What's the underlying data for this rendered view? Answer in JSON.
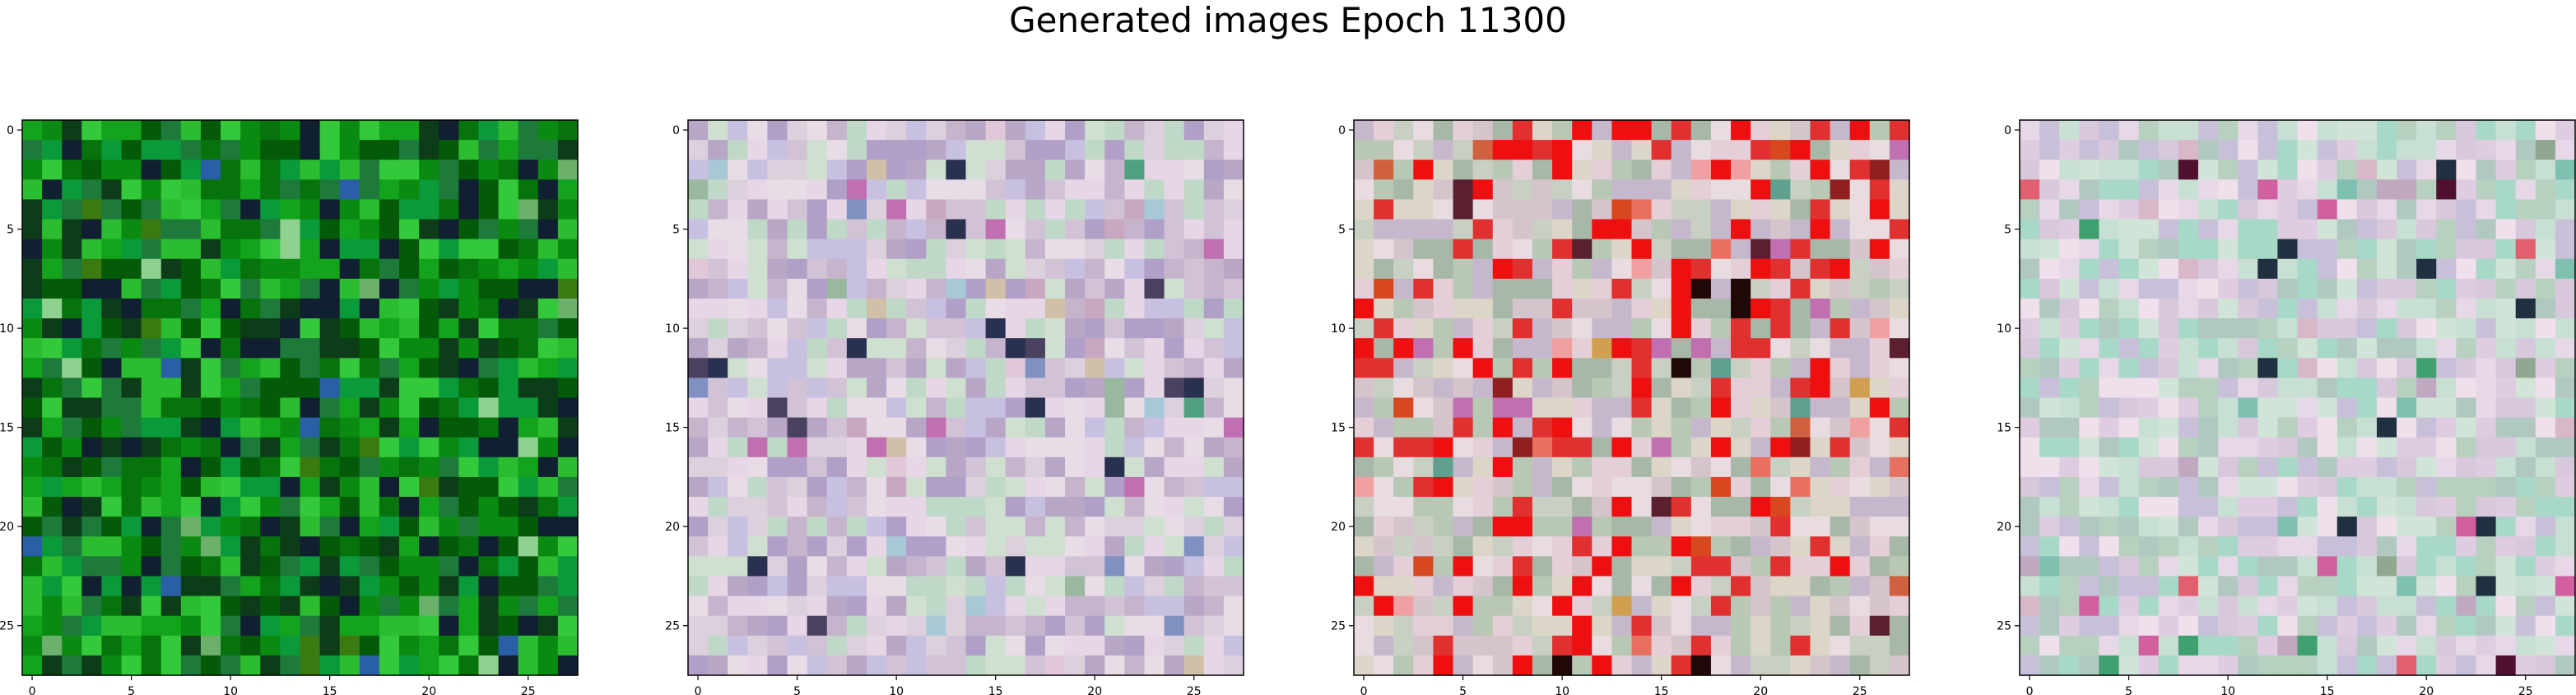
{
  "title": "Generated images Epoch 11300",
  "chart_data": [
    {
      "type": "heatmap",
      "grid_size": 28,
      "palette": [
        "#0b8a12",
        "#06730c",
        "#14a31c",
        "#045a08",
        "#2bbd2f",
        "#0a9a3a",
        "#1e7a3a",
        "#34c93a",
        "#0c3d18",
        "#102030",
        "#2a5fa5",
        "#6bb06b",
        "#8fd18f",
        "#3a7a10"
      ],
      "xticks": [
        0,
        5,
        10,
        15,
        20,
        25
      ],
      "yticks": [
        0,
        5,
        10,
        15,
        20,
        25
      ],
      "xlim": [
        -0.5,
        27.5
      ],
      "ylim": [
        27.5,
        -0.5
      ],
      "seed": 11
    },
    {
      "type": "heatmap",
      "grid_size": 28,
      "palette": [
        "#e6d6e6",
        "#d2c2d6",
        "#c6b4cc",
        "#b8a6c6",
        "#dcd0dc",
        "#cfe0d0",
        "#bfd8c8",
        "#e8dce6",
        "#c8c0e0",
        "#b0a0c8",
        "#d0c0a8",
        "#e0c8d8",
        "#a8c8d8",
        "#c8a8c0",
        "#9ab8a0",
        "#2a3050",
        "#4a4060",
        "#50a080",
        "#c070b0",
        "#8090c0"
      ],
      "xticks": [
        0,
        5,
        10,
        15,
        20,
        25
      ],
      "yticks": [
        0,
        5,
        10,
        15,
        20,
        25
      ],
      "xlim": [
        -0.5,
        27.5
      ],
      "ylim": [
        27.5,
        -0.5
      ],
      "seed": 23
    },
    {
      "type": "heatmap",
      "grid_size": 28,
      "palette": [
        "#e4cfd8",
        "#d6c4cc",
        "#c8d0c4",
        "#b8c8b4",
        "#dcd6c8",
        "#e8dce0",
        "#c6b8cc",
        "#a8b8a8",
        "#e03030",
        "#ee1010",
        "#d84820",
        "#e87060",
        "#f0a0a0",
        "#d0a050",
        "#902020",
        "#5a2030",
        "#200808",
        "#c070b0",
        "#60a090",
        "#d06040"
      ],
      "xticks": [
        0,
        5,
        10,
        15,
        20,
        25
      ],
      "yticks": [
        0,
        5,
        10,
        15,
        20,
        25
      ],
      "xlim": [
        -0.5,
        27.5
      ],
      "ylim": [
        27.5,
        -0.5
      ],
      "seed": 37
    },
    {
      "type": "heatmap",
      "grid_size": 28,
      "palette": [
        "#e6d8e6",
        "#d8c8dc",
        "#c8e0d4",
        "#b8d0c0",
        "#e0cce0",
        "#d0e4d8",
        "#c8c0d8",
        "#a8d8c8",
        "#f0e0ec",
        "#b0c8c0",
        "#d8b8c8",
        "#c0a8c0",
        "#80c0b0",
        "#90a890",
        "#501030",
        "#203040",
        "#40a070",
        "#d060a0",
        "#e06070"
      ],
      "xticks": [
        0,
        5,
        10,
        15,
        20,
        25
      ],
      "yticks": [
        0,
        5,
        10,
        15,
        20,
        25
      ],
      "xlim": [
        -0.5,
        27.5
      ],
      "ylim": [
        27.5,
        -0.5
      ],
      "seed": 53
    }
  ]
}
